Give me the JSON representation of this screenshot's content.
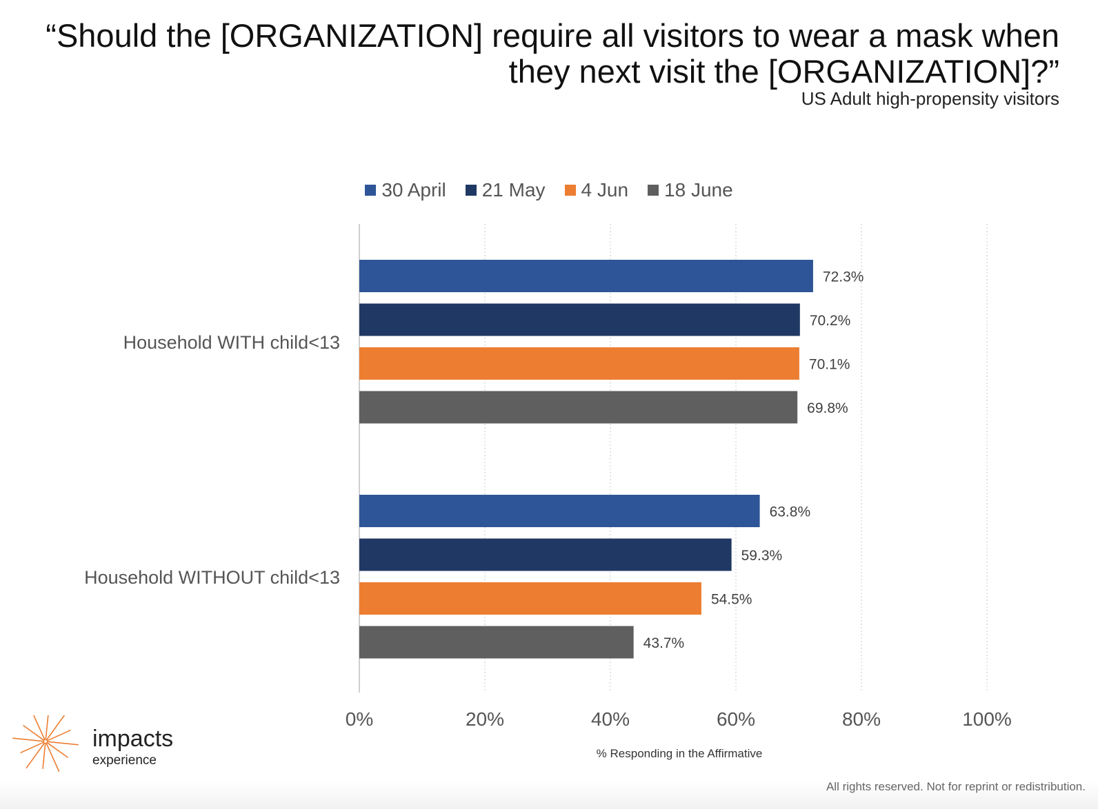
{
  "header": {
    "title": "“Should the [ORGANIZATION] require all visitors to wear a mask when they next visit the [ORGANIZATION]?”",
    "subtitle": "US Adult high-propensity visitors"
  },
  "chart_data": {
    "type": "bar",
    "orientation": "horizontal",
    "categories": [
      "Household WITH child<13",
      "Household WITHOUT child<13"
    ],
    "series": [
      {
        "name": "30 April",
        "color": "#2E5597",
        "values": [
          72.3,
          63.8
        ],
        "labels": [
          "72.3%",
          "63.8%"
        ]
      },
      {
        "name": "21 May",
        "color": "#203864",
        "values": [
          70.2,
          59.3
        ],
        "labels": [
          "70.2%",
          "59.3%"
        ]
      },
      {
        "name": "4 Jun",
        "color": "#ED7D31",
        "values": [
          70.1,
          54.5
        ],
        "labels": [
          "70.1%",
          "54.5%"
        ]
      },
      {
        "name": "18 June",
        "color": "#5F5F5F",
        "values": [
          69.8,
          43.7
        ],
        "labels": [
          "69.8%",
          "43.7%"
        ]
      }
    ],
    "xlim": [
      0,
      100
    ],
    "x_ticks": [
      0,
      20,
      40,
      60,
      80,
      100
    ],
    "x_tick_labels": [
      "0%",
      "20%",
      "40%",
      "60%",
      "80%",
      "100%"
    ],
    "xlabel": "% Responding in the Affirmative",
    "ylabel": "",
    "grid": true,
    "legend_position": "top-center"
  },
  "branding": {
    "logo_word": "impacts",
    "logo_sub": "experience",
    "logo_color": "#ED7D31"
  },
  "footer": {
    "text": "All rights reserved. Not for reprint or redistribution."
  }
}
